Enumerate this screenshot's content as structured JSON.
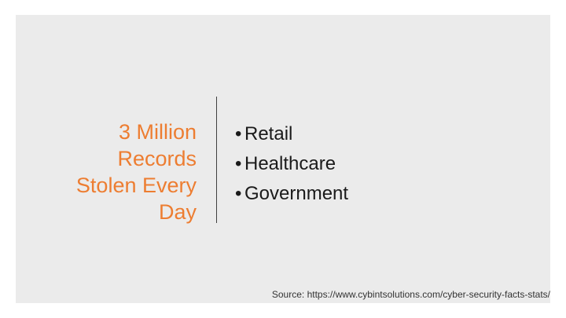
{
  "slide": {
    "title_lines": [
      "3 Million",
      "Records",
      "Stolen Every",
      "Day"
    ],
    "bullet_glyph": "•",
    "bullets": [
      "Retail",
      "Healthcare",
      "Government"
    ],
    "source": "Source: https://www.cybintsolutions.com/cyber-security-facts-stats/",
    "colors": {
      "title": "#ed7d31",
      "background": "#ebebeb",
      "text": "#1a1a1a"
    }
  }
}
